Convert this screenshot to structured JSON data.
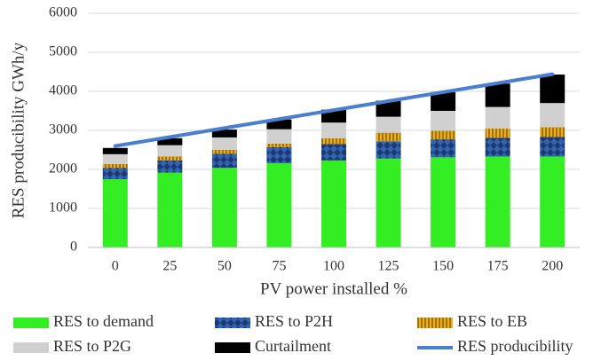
{
  "chart_data": {
    "type": "bar",
    "stacked": true,
    "x_label": "PV power installed %",
    "y_label": "RES producibility GWh/y",
    "categories": [
      "0",
      "25",
      "50",
      "75",
      "100",
      "125",
      "150",
      "175",
      "200"
    ],
    "series": [
      {
        "name": "RES to demand",
        "color": "#33ee22",
        "values": [
          1750,
          1920,
          2040,
          2160,
          2230,
          2280,
          2310,
          2330,
          2330
        ]
      },
      {
        "name": "RES to P2H",
        "color": "#2f64b8",
        "pattern": "diamond",
        "values": [
          290,
          310,
          360,
          410,
          420,
          440,
          460,
          480,
          500
        ]
      },
      {
        "name": "RES to EB",
        "color": "#e8b020",
        "pattern": "stripes",
        "values": [
          100,
          100,
          100,
          90,
          150,
          220,
          220,
          240,
          250
        ]
      },
      {
        "name": "RES to P2G",
        "color": "#d0d0d0",
        "values": [
          250,
          290,
          320,
          370,
          400,
          410,
          510,
          550,
          620
        ]
      },
      {
        "name": "Curtailment",
        "color": "#000000",
        "values": [
          160,
          180,
          200,
          250,
          330,
          410,
          480,
          600,
          730
        ]
      },
      {
        "name": "RES producibility",
        "color": "#4a7fd0",
        "type": "line",
        "values": [
          2600,
          2830,
          3060,
          3290,
          3520,
          3750,
          3980,
          4210,
          4440
        ]
      }
    ],
    "ylim": [
      0,
      6000
    ],
    "yticks": [
      0,
      1000,
      2000,
      3000,
      4000,
      5000,
      6000
    ],
    "grid": true,
    "legend": "bottom"
  }
}
